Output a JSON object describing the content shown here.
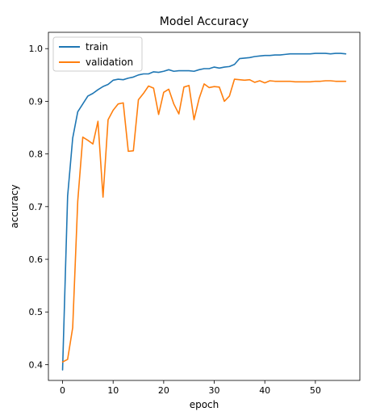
{
  "chart_data": {
    "type": "line",
    "title": "Model Accuracy",
    "xlabel": "epoch",
    "ylabel": "accuracy",
    "xlim": [
      -2.8,
      58.8
    ],
    "ylim": [
      0.37,
      1.031
    ],
    "xticks": [
      0,
      10,
      20,
      30,
      40,
      50
    ],
    "yticks": [
      0.4,
      0.5,
      0.6,
      0.7,
      0.8,
      0.9,
      1.0
    ],
    "legend_position": "top-left",
    "series": [
      {
        "name": "train",
        "color": "#1f77b4",
        "x": [
          0,
          1,
          2,
          3,
          4,
          5,
          6,
          7,
          8,
          9,
          10,
          11,
          12,
          13,
          14,
          15,
          16,
          17,
          18,
          19,
          20,
          21,
          22,
          23,
          24,
          25,
          26,
          27,
          28,
          29,
          30,
          31,
          32,
          33,
          34,
          35,
          36,
          37,
          38,
          39,
          40,
          41,
          42,
          43,
          44,
          45,
          46,
          47,
          48,
          49,
          50,
          51,
          52,
          53,
          54,
          55,
          56
        ],
        "y": [
          0.39,
          0.72,
          0.83,
          0.88,
          0.895,
          0.91,
          0.915,
          0.922,
          0.928,
          0.932,
          0.94,
          0.942,
          0.941,
          0.944,
          0.946,
          0.95,
          0.952,
          0.952,
          0.956,
          0.955,
          0.957,
          0.96,
          0.957,
          0.958,
          0.958,
          0.958,
          0.957,
          0.96,
          0.962,
          0.962,
          0.965,
          0.963,
          0.965,
          0.966,
          0.97,
          0.981,
          0.982,
          0.983,
          0.985,
          0.986,
          0.987,
          0.987,
          0.988,
          0.988,
          0.989,
          0.99,
          0.99,
          0.99,
          0.99,
          0.99,
          0.991,
          0.991,
          0.991,
          0.99,
          0.991,
          0.991,
          0.99
        ]
      },
      {
        "name": "validation",
        "color": "#ff7f0e",
        "x": [
          0,
          1,
          2,
          3,
          4,
          5,
          6,
          7,
          8,
          9,
          10,
          11,
          12,
          13,
          14,
          15,
          16,
          17,
          18,
          19,
          20,
          21,
          22,
          23,
          24,
          25,
          26,
          27,
          28,
          29,
          30,
          31,
          32,
          33,
          34,
          35,
          36,
          37,
          38,
          39,
          40,
          41,
          42,
          43,
          44,
          45,
          46,
          47,
          48,
          49,
          50,
          51,
          52,
          53,
          54,
          55,
          56
        ],
        "y": [
          0.405,
          0.41,
          0.47,
          0.71,
          0.832,
          0.826,
          0.819,
          0.862,
          0.718,
          0.865,
          0.883,
          0.895,
          0.897,
          0.805,
          0.806,
          0.903,
          0.915,
          0.929,
          0.925,
          0.875,
          0.917,
          0.923,
          0.895,
          0.876,
          0.927,
          0.93,
          0.865,
          0.905,
          0.933,
          0.926,
          0.928,
          0.927,
          0.9,
          0.91,
          0.942,
          0.941,
          0.94,
          0.941,
          0.936,
          0.939,
          0.935,
          0.939,
          0.938,
          0.938,
          0.938,
          0.938,
          0.937,
          0.937,
          0.937,
          0.937,
          0.938,
          0.938,
          0.939,
          0.939,
          0.938,
          0.938,
          0.938
        ]
      }
    ]
  }
}
